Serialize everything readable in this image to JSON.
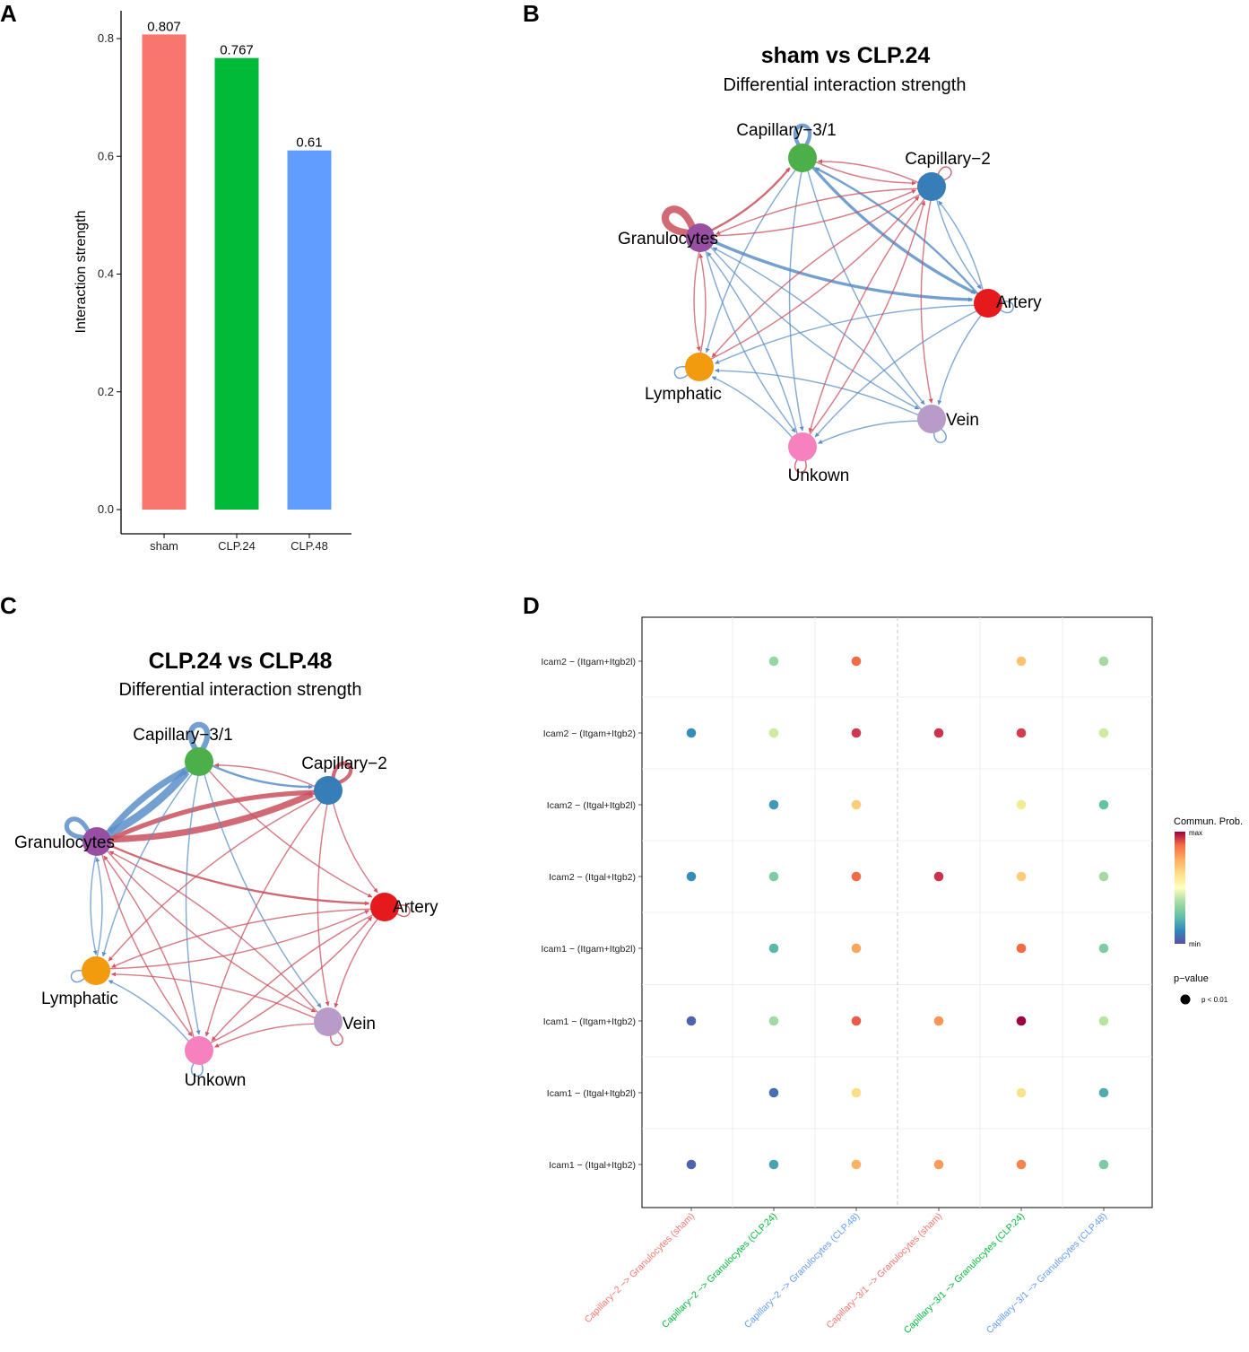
{
  "panels": {
    "a": "A",
    "b": "B",
    "c": "C",
    "d": "D"
  },
  "chart_data": [
    {
      "id": "A",
      "type": "bar",
      "title": "",
      "xlabel": "",
      "ylabel": "Interaction strength",
      "ylim": [
        0,
        0.84
      ],
      "yticks": [
        0.0,
        0.2,
        0.4,
        0.6,
        0.8
      ],
      "ytick_labels": [
        "0.0",
        "0.2",
        "0.4",
        "0.6",
        "0.8"
      ],
      "categories": [
        "sham",
        "CLP.24",
        "CLP.48"
      ],
      "values": [
        0.807,
        0.767,
        0.61
      ],
      "value_labels": [
        "0.807",
        "0.767",
        "0.61"
      ],
      "colors": [
        "#F8766D",
        "#00BA38",
        "#619CFF"
      ]
    },
    {
      "id": "B",
      "type": "network",
      "title": "sham vs CLP.24",
      "subtitle": "Differential interaction strength",
      "nodes": [
        {
          "name": "Capillary−3/1",
          "color": "#4DAF4A"
        },
        {
          "name": "Capillary−2",
          "color": "#377EB8"
        },
        {
          "name": "Artery",
          "color": "#E41A1C"
        },
        {
          "name": "Vein",
          "color": "#B89BC9"
        },
        {
          "name": "Unkown",
          "color": "#F781BF"
        },
        {
          "name": "Lymphatic",
          "color": "#F39B0F"
        },
        {
          "name": "Granulocytes",
          "color": "#984EA3"
        }
      ],
      "edges": [
        {
          "from": 0,
          "to": 0,
          "color": "blue",
          "weight": 4
        },
        {
          "from": 6,
          "to": 6,
          "color": "red",
          "weight": 8
        },
        {
          "from": 1,
          "to": 1,
          "color": "red",
          "weight": 1
        },
        {
          "from": 2,
          "to": 2,
          "color": "blue",
          "weight": 1
        },
        {
          "from": 3,
          "to": 3,
          "color": "blue",
          "weight": 1
        },
        {
          "from": 4,
          "to": 4,
          "color": "red",
          "weight": 1
        },
        {
          "from": 5,
          "to": 5,
          "color": "blue",
          "weight": 1
        },
        {
          "from": 0,
          "to": 2,
          "color": "blue",
          "weight": 3
        },
        {
          "from": 6,
          "to": 2,
          "color": "blue",
          "weight": 3
        },
        {
          "from": 6,
          "to": 0,
          "color": "red",
          "weight": 2
        },
        {
          "from": 2,
          "to": 0,
          "color": "blue",
          "weight": 2
        },
        {
          "from": 0,
          "to": 1,
          "color": "red",
          "weight": 1
        },
        {
          "from": 1,
          "to": 0,
          "color": "red",
          "weight": 1
        },
        {
          "from": 0,
          "to": 3,
          "color": "blue",
          "weight": 1
        },
        {
          "from": 0,
          "to": 4,
          "color": "blue",
          "weight": 1
        },
        {
          "from": 0,
          "to": 5,
          "color": "blue",
          "weight": 1
        },
        {
          "from": 1,
          "to": 2,
          "color": "blue",
          "weight": 1
        },
        {
          "from": 1,
          "to": 3,
          "color": "red",
          "weight": 1
        },
        {
          "from": 1,
          "to": 4,
          "color": "red",
          "weight": 1
        },
        {
          "from": 1,
          "to": 5,
          "color": "red",
          "weight": 1
        },
        {
          "from": 1,
          "to": 6,
          "color": "red",
          "weight": 1
        },
        {
          "from": 6,
          "to": 1,
          "color": "red",
          "weight": 1
        },
        {
          "from": 2,
          "to": 3,
          "color": "blue",
          "weight": 1
        },
        {
          "from": 2,
          "to": 4,
          "color": "blue",
          "weight": 1
        },
        {
          "from": 2,
          "to": 5,
          "color": "blue",
          "weight": 1
        },
        {
          "from": 2,
          "to": 1,
          "color": "blue",
          "weight": 1
        },
        {
          "from": 3,
          "to": 4,
          "color": "blue",
          "weight": 1
        },
        {
          "from": 3,
          "to": 5,
          "color": "blue",
          "weight": 1
        },
        {
          "from": 3,
          "to": 6,
          "color": "blue",
          "weight": 1
        },
        {
          "from": 4,
          "to": 5,
          "color": "blue",
          "weight": 1
        },
        {
          "from": 4,
          "to": 6,
          "color": "blue",
          "weight": 1
        },
        {
          "from": 5,
          "to": 6,
          "color": "red",
          "weight": 1
        },
        {
          "from": 6,
          "to": 5,
          "color": "red",
          "weight": 1
        },
        {
          "from": 6,
          "to": 3,
          "color": "blue",
          "weight": 1
        },
        {
          "from": 6,
          "to": 4,
          "color": "blue",
          "weight": 1
        },
        {
          "from": 5,
          "to": 1,
          "color": "red",
          "weight": 1
        },
        {
          "from": 4,
          "to": 1,
          "color": "red",
          "weight": 1
        }
      ]
    },
    {
      "id": "C",
      "type": "network",
      "title": "CLP.24 vs CLP.48",
      "subtitle": "Differential interaction strength",
      "nodes": [
        {
          "name": "Capillary−3/1",
          "color": "#4DAF4A"
        },
        {
          "name": "Capillary−2",
          "color": "#377EB8"
        },
        {
          "name": "Artery",
          "color": "#E41A1C"
        },
        {
          "name": "Vein",
          "color": "#B89BC9"
        },
        {
          "name": "Unkown",
          "color": "#F781BF"
        },
        {
          "name": "Lymphatic",
          "color": "#F39B0F"
        },
        {
          "name": "Granulocytes",
          "color": "#984EA3"
        }
      ],
      "edges": [
        {
          "from": 0,
          "to": 0,
          "color": "blue",
          "weight": 6
        },
        {
          "from": 6,
          "to": 6,
          "color": "blue",
          "weight": 5
        },
        {
          "from": 1,
          "to": 1,
          "color": "red",
          "weight": 4
        },
        {
          "from": 2,
          "to": 2,
          "color": "red",
          "weight": 1
        },
        {
          "from": 3,
          "to": 3,
          "color": "red",
          "weight": 1
        },
        {
          "from": 4,
          "to": 4,
          "color": "blue",
          "weight": 1
        },
        {
          "from": 5,
          "to": 5,
          "color": "blue",
          "weight": 1
        },
        {
          "from": 6,
          "to": 0,
          "color": "blue",
          "weight": 9
        },
        {
          "from": 0,
          "to": 6,
          "color": "blue",
          "weight": 7
        },
        {
          "from": 6,
          "to": 1,
          "color": "red",
          "weight": 7
        },
        {
          "from": 1,
          "to": 6,
          "color": "red",
          "weight": 5
        },
        {
          "from": 6,
          "to": 2,
          "color": "red",
          "weight": 2
        },
        {
          "from": 0,
          "to": 1,
          "color": "blue",
          "weight": 2
        },
        {
          "from": 1,
          "to": 0,
          "color": "red",
          "weight": 1
        },
        {
          "from": 0,
          "to": 2,
          "color": "red",
          "weight": 1
        },
        {
          "from": 0,
          "to": 3,
          "color": "blue",
          "weight": 1
        },
        {
          "from": 0,
          "to": 4,
          "color": "blue",
          "weight": 1
        },
        {
          "from": 0,
          "to": 5,
          "color": "blue",
          "weight": 1
        },
        {
          "from": 1,
          "to": 2,
          "color": "red",
          "weight": 1
        },
        {
          "from": 1,
          "to": 3,
          "color": "red",
          "weight": 1
        },
        {
          "from": 1,
          "to": 4,
          "color": "red",
          "weight": 1
        },
        {
          "from": 1,
          "to": 5,
          "color": "red",
          "weight": 1
        },
        {
          "from": 2,
          "to": 3,
          "color": "red",
          "weight": 1
        },
        {
          "from": 2,
          "to": 4,
          "color": "red",
          "weight": 1
        },
        {
          "from": 2,
          "to": 5,
          "color": "red",
          "weight": 1
        },
        {
          "from": 3,
          "to": 4,
          "color": "red",
          "weight": 1
        },
        {
          "from": 3,
          "to": 5,
          "color": "red",
          "weight": 1
        },
        {
          "from": 3,
          "to": 6,
          "color": "red",
          "weight": 1
        },
        {
          "from": 4,
          "to": 5,
          "color": "blue",
          "weight": 1
        },
        {
          "from": 4,
          "to": 6,
          "color": "red",
          "weight": 1
        },
        {
          "from": 5,
          "to": 6,
          "color": "blue",
          "weight": 1
        },
        {
          "from": 6,
          "to": 5,
          "color": "blue",
          "weight": 1
        },
        {
          "from": 6,
          "to": 4,
          "color": "red",
          "weight": 1
        },
        {
          "from": 6,
          "to": 3,
          "color": "red",
          "weight": 1
        },
        {
          "from": 5,
          "to": 2,
          "color": "red",
          "weight": 1
        },
        {
          "from": 4,
          "to": 2,
          "color": "red",
          "weight": 1
        }
      ]
    },
    {
      "id": "D",
      "type": "dotplot",
      "rows": [
        "Icam2  − (Itgam+Itgb2l)",
        "Icam2  − (Itgam+Itgb2)",
        "Icam2  − (Itgal+Itgb2l)",
        "Icam2  − (Itgal+Itgb2)",
        "Icam1  − (Itgam+Itgb2l)",
        "Icam1  − (Itgam+Itgb2)",
        "Icam1  − (Itgal+Itgb2l)",
        "Icam1  − (Itgal+Itgb2)"
      ],
      "columns": [
        {
          "label": "Capillary−2 −> Granulocytes (sham)",
          "color": "#F8766D"
        },
        {
          "label": "Capillary−2 −> Granulocytes (CLP.24)",
          "color": "#00BA38"
        },
        {
          "label": "Capillary−2 −> Granulocytes (CLP.48)",
          "color": "#619CFF"
        },
        {
          "label": "Capillary−3/1 −> Granulocytes (sham)",
          "color": "#F8766D"
        },
        {
          "label": "Capillary−3/1 −> Granulocytes (CLP.24)",
          "color": "#00BA38"
        },
        {
          "label": "Capillary−3/1 −> Granulocytes (CLP.48)",
          "color": "#619CFF"
        }
      ],
      "values": [
        [
          null,
          0.3,
          0.78,
          null,
          0.62,
          0.32
        ],
        [
          0.12,
          0.4,
          0.9,
          0.91,
          0.89,
          0.4
        ],
        [
          null,
          0.14,
          0.6,
          null,
          0.5,
          0.22
        ],
        [
          0.12,
          0.26,
          0.78,
          0.91,
          0.6,
          0.32
        ],
        [
          null,
          0.2,
          0.68,
          null,
          0.78,
          0.26
        ],
        [
          0.04,
          0.32,
          0.82,
          0.71,
          1.0,
          0.36
        ],
        [
          null,
          0.06,
          0.56,
          null,
          0.54,
          0.18
        ],
        [
          0.04,
          0.16,
          0.66,
          0.7,
          0.74,
          0.26
        ]
      ],
      "legend": {
        "color_title": "Commun. Prob.",
        "max_label": "max",
        "min_label": "min",
        "size_title": "p−value",
        "size_label": "p < 0.01"
      }
    }
  ],
  "colors": {
    "edge_red": "#C9505D",
    "edge_blue": "#5A8FC8",
    "edge_red_arrow": "#D4545F",
    "edge_blue_arrow": "#5B8FCB"
  }
}
